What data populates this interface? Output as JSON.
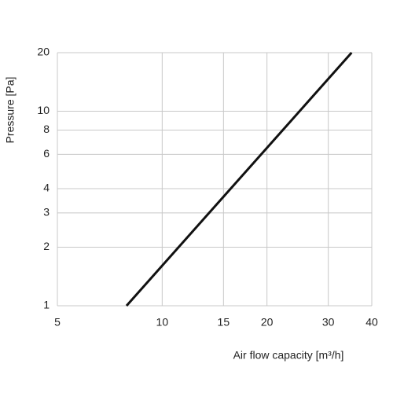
{
  "chart_data": {
    "type": "line",
    "x_label": "Air flow capacity [m³/h]",
    "y_label": "Pressure [Pa]",
    "x": [
      7.9,
      35
    ],
    "series": [
      {
        "values": [
          1,
          20
        ],
        "color": "#111111"
      }
    ],
    "xlim": [
      5,
      40
    ],
    "ylim": [
      1,
      20
    ],
    "xticks": [
      5,
      10,
      15,
      20,
      30,
      40
    ],
    "yticks": [
      1,
      2,
      3,
      4,
      6,
      8,
      10,
      20
    ],
    "xscale": "log",
    "yscale": "log",
    "grid": true
  }
}
